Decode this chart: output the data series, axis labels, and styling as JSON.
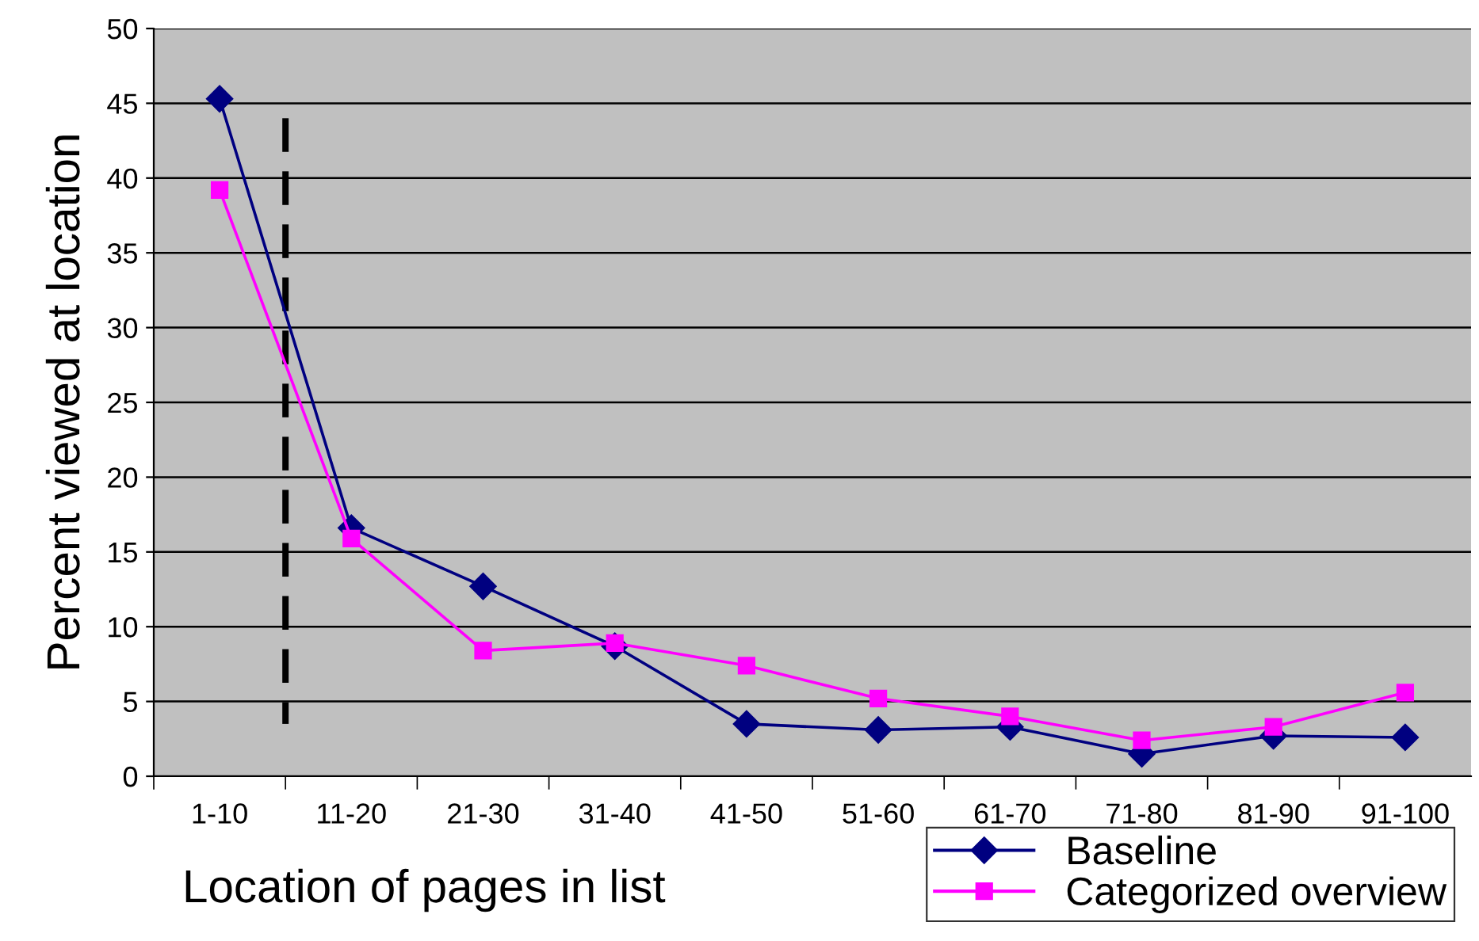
{
  "chart_data": {
    "type": "line",
    "xlabel": "Location of pages in list",
    "ylabel": "Percent viewed at location",
    "categories": [
      "1-10",
      "11-20",
      "21-30",
      "31-40",
      "41-50",
      "51-60",
      "61-70",
      "71-80",
      "81-90",
      "91-100"
    ],
    "series": [
      {
        "name": "Baseline",
        "color": "#000080",
        "marker": "diamond",
        "values": [
          45.3,
          16.6,
          12.7,
          8.7,
          3.5,
          3.1,
          3.3,
          1.5,
          2.7,
          2.6
        ]
      },
      {
        "name": "Categorized overview",
        "color": "#ff00ff",
        "marker": "square",
        "values": [
          39.2,
          15.9,
          8.4,
          8.9,
          7.4,
          5.2,
          4.0,
          2.4,
          3.3,
          5.6
        ]
      }
    ],
    "ylim": [
      0,
      50
    ],
    "yticks": [
      0,
      5,
      10,
      15,
      20,
      25,
      30,
      35,
      40,
      45,
      50
    ],
    "grid": "y",
    "legend": "bottom right"
  }
}
